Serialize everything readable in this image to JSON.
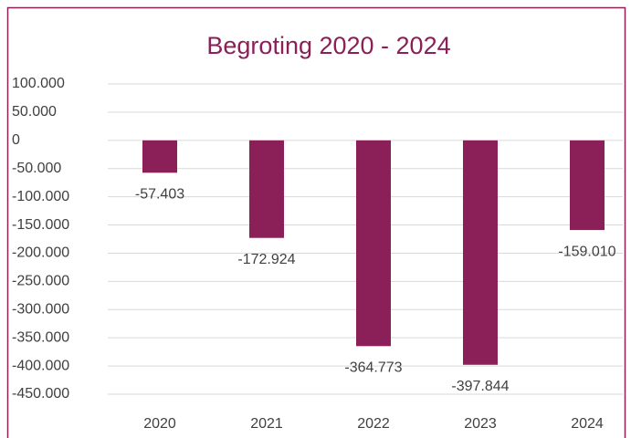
{
  "chart_data": {
    "type": "bar",
    "title": "Begroting 2020 - 2024",
    "categories": [
      "2020",
      "2021",
      "2022",
      "2023",
      "2024"
    ],
    "values": [
      -57403,
      -172924,
      -364773,
      -397844,
      -159010
    ],
    "value_labels": [
      "-57.403",
      "-172.924",
      "-364.773",
      "-397.844",
      "-159.010"
    ],
    "color": "#8b1f57",
    "ylim": [
      -450000,
      100000
    ],
    "yticks": [
      {
        "value": -450000,
        "label": "-450.000"
      },
      {
        "value": -400000,
        "label": "-400.000"
      },
      {
        "value": -350000,
        "label": "-350.000"
      },
      {
        "value": -300000,
        "label": "-300.000"
      },
      {
        "value": -250000,
        "label": "-250.000"
      },
      {
        "value": -200000,
        "label": "-200.000"
      },
      {
        "value": -150000,
        "label": "-150.000"
      },
      {
        "value": -100000,
        "label": "-100.000"
      },
      {
        "value": -50000,
        "label": "-50.000"
      },
      0,
      {
        "value": 50000,
        "label": "50.000"
      },
      {
        "value": 100000,
        "label": "100.000"
      }
    ],
    "grid": true
  }
}
